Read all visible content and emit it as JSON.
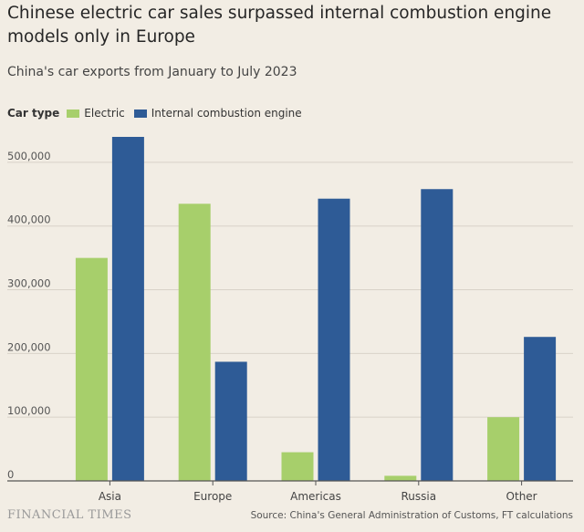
{
  "title": "Chinese electric car sales surpassed internal combustion engine models only in Europe",
  "subtitle": "China's car exports from January to July 2023",
  "legend_title": "Car type",
  "footer_brand": "FINANCIAL TIMES",
  "source": "Source: China's General Administration of Customs, FT calculations",
  "colors": {
    "electric": "#a7cf6b",
    "ice": "#2e5b96",
    "gridline": "#d8d2c8",
    "baseline": "#555555",
    "background": "#f2ede4"
  },
  "chart_data": {
    "type": "bar",
    "categories": [
      "Asia",
      "Europe",
      "Americas",
      "Russia",
      "Other"
    ],
    "series": [
      {
        "name": "Electric",
        "values": [
          350000,
          435000,
          45000,
          8000,
          100000
        ]
      },
      {
        "name": "Internal combustion engine",
        "values": [
          540000,
          187000,
          443000,
          458000,
          226000
        ]
      }
    ],
    "yticks": [
      0,
      100000,
      200000,
      300000,
      400000,
      500000
    ],
    "ytick_labels": [
      "0",
      "100,000",
      "200,000",
      "300,000",
      "400,000",
      "500,000"
    ],
    "ylim": [
      0,
      540000
    ],
    "grid": true,
    "legend_position": "top-left"
  }
}
